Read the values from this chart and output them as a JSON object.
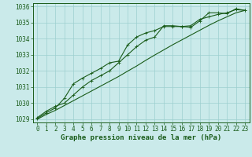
{
  "background_color": "#caeaea",
  "plot_bg_color": "#caeaea",
  "grid_color": "#9dcfcf",
  "line_color": "#1a5c1a",
  "title": "Graphe pression niveau de la mer (hPa)",
  "tick_fontsize": 5.5,
  "label_fontsize": 6.5,
  "xlim": [
    -0.5,
    23.5
  ],
  "ylim": [
    1028.8,
    1036.2
  ],
  "xticks": [
    0,
    1,
    2,
    3,
    4,
    5,
    6,
    7,
    8,
    9,
    10,
    11,
    12,
    13,
    14,
    15,
    16,
    17,
    18,
    19,
    20,
    21,
    22,
    23
  ],
  "yticks": [
    1029,
    1030,
    1031,
    1032,
    1033,
    1034,
    1035,
    1036
  ],
  "line1_x": [
    0,
    1,
    2,
    3,
    4,
    5,
    6,
    7,
    8,
    9,
    10,
    11,
    12,
    13,
    14,
    15,
    16,
    17,
    18,
    19,
    20,
    21,
    22,
    23
  ],
  "line1_y": [
    1029.1,
    1029.5,
    1029.8,
    1030.0,
    1030.5,
    1031.0,
    1031.4,
    1031.7,
    1032.0,
    1032.5,
    1033.0,
    1033.5,
    1033.9,
    1034.1,
    1034.8,
    1034.8,
    1034.75,
    1034.7,
    1035.1,
    1035.6,
    1035.6,
    1035.55,
    1035.85,
    1035.75
  ],
  "line2_x": [
    0,
    1,
    2,
    3,
    4,
    5,
    6,
    7,
    8,
    9,
    10,
    11,
    12,
    13,
    14,
    15,
    16,
    17,
    18,
    19,
    20,
    21,
    22,
    23
  ],
  "line2_y": [
    1029.05,
    1029.4,
    1029.7,
    1030.3,
    1031.2,
    1031.55,
    1031.85,
    1032.15,
    1032.5,
    1032.6,
    1033.6,
    1034.1,
    1034.35,
    1034.5,
    1034.75,
    1034.75,
    1034.75,
    1034.8,
    1035.2,
    1035.35,
    1035.5,
    1035.6,
    1035.8,
    1035.75
  ],
  "line3_x": [
    0,
    1,
    2,
    3,
    4,
    5,
    6,
    7,
    8,
    9,
    10,
    11,
    12,
    13,
    14,
    15,
    16,
    17,
    18,
    19,
    20,
    21,
    22,
    23
  ],
  "line3_y": [
    1029.0,
    1029.3,
    1029.55,
    1029.85,
    1030.15,
    1030.45,
    1030.75,
    1031.05,
    1031.35,
    1031.65,
    1031.98,
    1032.3,
    1032.65,
    1032.98,
    1033.3,
    1033.62,
    1033.92,
    1034.22,
    1034.52,
    1034.82,
    1035.1,
    1035.35,
    1035.6,
    1035.75
  ]
}
